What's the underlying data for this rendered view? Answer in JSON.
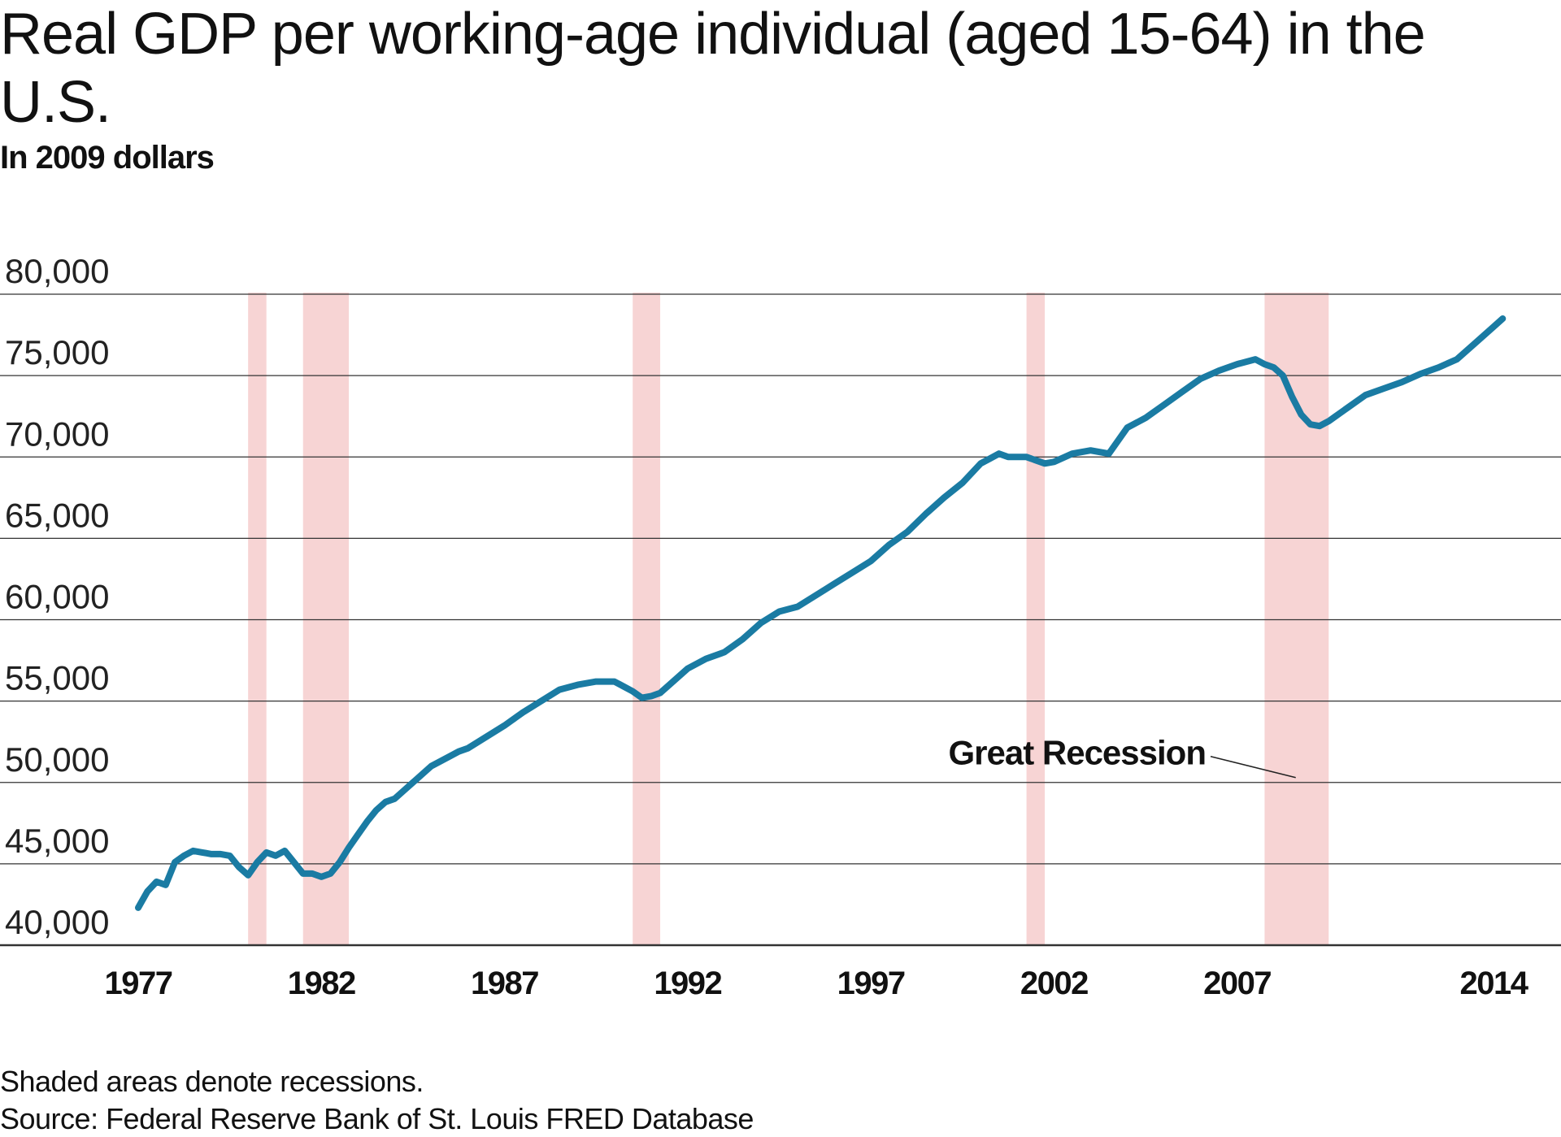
{
  "title": "Real GDP per working-age individual (aged 15-64) in the U.S.",
  "subtitle": "In 2009 dollars",
  "footnotes": {
    "shading": "Shaded areas denote recessions.",
    "source": "Source: Federal Reserve Bank of St. Louis FRED Database"
  },
  "colors": {
    "line": "#1a7ba3",
    "recession": "#f7d4d4",
    "grid": "#333333"
  },
  "chart_data": {
    "type": "line",
    "title": "Real GDP per working-age individual (aged 15-64) in the U.S.",
    "subtitle": "In 2009 dollars",
    "ylim": [
      40000,
      80000
    ],
    "xlim": [
      1977,
      2014
    ],
    "yticks": [
      40000,
      45000,
      50000,
      55000,
      60000,
      65000,
      70000,
      75000,
      80000
    ],
    "ytick_labels": [
      "40,000",
      "45,000",
      "50,000",
      "55,000",
      "60,000",
      "65,000",
      "70,000",
      "75,000",
      "80,000"
    ],
    "xticks": [
      1977,
      1982,
      1987,
      1992,
      1997,
      2002,
      2007,
      2014
    ],
    "xtick_labels": [
      "1977",
      "1982",
      "1987",
      "1992",
      "1997",
      "2002",
      "2007",
      "2014"
    ],
    "grid": "horizontal",
    "series": [
      {
        "x": [
          1977.0,
          1977.25,
          1977.5,
          1977.75,
          1978.0,
          1978.25,
          1978.5,
          1978.75,
          1979.0,
          1979.25,
          1979.5,
          1979.75,
          1980.0,
          1980.25,
          1980.5,
          1980.75,
          1981.0,
          1981.25,
          1981.5,
          1981.75,
          1982.0,
          1982.25,
          1982.5,
          1982.75,
          1983.0,
          1983.25,
          1983.5,
          1983.75,
          1984.0,
          1984.25,
          1984.5,
          1984.75,
          1985.0,
          1985.25,
          1985.5,
          1985.75,
          1986.0,
          1986.5,
          1987.0,
          1987.5,
          1988.0,
          1988.5,
          1989.0,
          1989.5,
          1990.0,
          1990.5,
          1990.75,
          1991.0,
          1991.25,
          1991.5,
          1992.0,
          1992.5,
          1993.0,
          1993.5,
          1994.0,
          1994.5,
          1995.0,
          1995.5,
          1996.0,
          1996.5,
          1997.0,
          1997.5,
          1998.0,
          1998.5,
          1999.0,
          1999.5,
          2000.0,
          2000.25,
          2000.5,
          2000.75,
          2001.0,
          2001.25,
          2001.5,
          2001.75,
          2002.0,
          2002.5,
          2003.0,
          2003.5,
          2004.0,
          2004.5,
          2005.0,
          2005.5,
          2006.0,
          2006.5,
          2007.0,
          2007.5,
          2007.75,
          2008.0,
          2008.25,
          2008.5,
          2008.75,
          2009.0,
          2009.25,
          2009.5,
          2009.75,
          2010.0,
          2010.5,
          2011.0,
          2011.5,
          2012.0,
          2012.5,
          2013.0,
          2013.5,
          2014.0,
          2014.25
        ],
        "y": [
          42300,
          43300,
          43900,
          43700,
          45100,
          45500,
          45800,
          45700,
          45600,
          45600,
          45500,
          44800,
          44300,
          45100,
          45700,
          45500,
          45800,
          45100,
          44400,
          44400,
          44200,
          44400,
          45100,
          46000,
          46800,
          47600,
          48300,
          48800,
          49000,
          49500,
          50000,
          50500,
          51000,
          51300,
          51600,
          51900,
          52100,
          52800,
          53500,
          54300,
          55000,
          55700,
          56000,
          56200,
          56200,
          55600,
          55200,
          55300,
          55500,
          56000,
          57000,
          57600,
          58000,
          58800,
          59800,
          60500,
          60800,
          61500,
          62200,
          62900,
          63600,
          64600,
          65400,
          66500,
          67500,
          68400,
          69600,
          69900,
          70200,
          70000,
          70000,
          70000,
          69800,
          69600,
          69700,
          70200,
          70400,
          70200,
          71800,
          72400,
          73200,
          74000,
          74800,
          75300,
          75700,
          76000,
          75700,
          75500,
          75000,
          73700,
          72600,
          72000,
          71900,
          72200,
          72600,
          73000,
          73800,
          74200,
          74600,
          75100,
          75500,
          76000,
          77000,
          78000,
          78500
        ]
      }
    ],
    "recessions": [
      [
        1980.0,
        1980.5
      ],
      [
        1981.5,
        1982.75
      ],
      [
        1990.5,
        1991.25
      ],
      [
        2001.25,
        2001.75
      ],
      [
        2007.75,
        2009.5
      ]
    ],
    "annotations": [
      {
        "text": "Great Recession"
      }
    ]
  }
}
